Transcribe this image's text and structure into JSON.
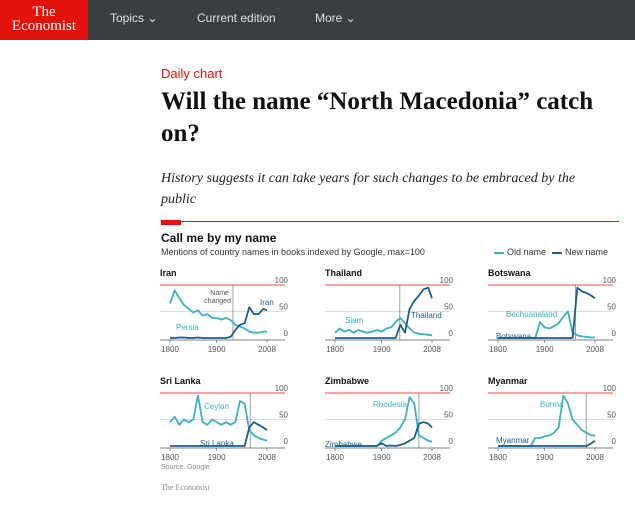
{
  "nav": {
    "logo_line1": "The",
    "logo_line2": "Economist",
    "topics": "Topics ⌄",
    "current": "Current edition",
    "more": "More ⌄"
  },
  "article": {
    "kicker": "Daily chart",
    "title": "Will the name “North Macedonia” catch on?",
    "subtitle": "History suggests it can take years for such changes to be embraced by the public"
  },
  "colors": {
    "old": "#38b2c4",
    "new": "#1b5d8c",
    "accent": "#e3120b"
  },
  "chart_data": {
    "type": "line",
    "title": "Call me by my name",
    "subtitle": "Mentions of country names in books indexed by Google, max=100",
    "legend": [
      "Old name",
      "New name"
    ],
    "legend_placement": "top-right",
    "ylim": [
      0,
      100
    ],
    "yticks": [
      "100",
      "50",
      "0"
    ],
    "xticks": [
      "1800",
      "1900",
      "2008"
    ],
    "x": [
      1800,
      1810,
      1820,
      1830,
      1840,
      1850,
      1860,
      1870,
      1880,
      1890,
      1900,
      1910,
      1920,
      1930,
      1940,
      1950,
      1960,
      1970,
      1980,
      1990,
      2000,
      2008
    ],
    "panels": [
      {
        "country": "Iran",
        "old_label": "Persia",
        "new_label": "Iran",
        "change_year": 1935,
        "annotation": "Name changed",
        "old": [
          65,
          90,
          75,
          62,
          55,
          48,
          52,
          42,
          45,
          38,
          38,
          35,
          38,
          34,
          25,
          22,
          18,
          12,
          10,
          10,
          12,
          12
        ],
        "new": [
          0,
          0,
          1,
          1,
          0,
          0,
          1,
          0,
          0,
          0,
          0,
          0,
          0,
          2,
          15,
          25,
          28,
          58,
          45,
          45,
          55,
          52
        ]
      },
      {
        "country": "Thailand",
        "old_label": "Siam",
        "new_label": "Thailand",
        "change_year": 1939,
        "old": [
          10,
          18,
          12,
          15,
          10,
          15,
          12,
          10,
          12,
          15,
          12,
          18,
          20,
          30,
          38,
          28,
          18,
          10,
          8,
          7,
          6,
          5
        ],
        "new": [
          0,
          0,
          0,
          0,
          0,
          0,
          0,
          0,
          0,
          0,
          0,
          0,
          0,
          0,
          25,
          10,
          55,
          70,
          80,
          92,
          95,
          75
        ]
      },
      {
        "country": "Botswana",
        "old_label": "Bechuanaland",
        "new_label": "Botswana",
        "change_year": 1966,
        "old": [
          0,
          0,
          0,
          0,
          0,
          0,
          0,
          0,
          0,
          30,
          20,
          18,
          22,
          28,
          40,
          50,
          10,
          5,
          3,
          2,
          1,
          1
        ],
        "new": [
          0,
          0,
          0,
          0,
          0,
          0,
          0,
          0,
          0,
          0,
          0,
          0,
          0,
          0,
          0,
          0,
          0,
          95,
          88,
          85,
          80,
          75
        ]
      },
      {
        "country": "Sri Lanka",
        "old_label": "Ceylon",
        "new_label": "Sri Lanka",
        "change_year": 1972,
        "old": [
          45,
          55,
          40,
          50,
          45,
          50,
          95,
          45,
          40,
          50,
          45,
          40,
          45,
          40,
          45,
          85,
          80,
          30,
          20,
          15,
          12,
          10
        ],
        "new": [
          0,
          0,
          0,
          0,
          0,
          0,
          0,
          0,
          0,
          0,
          0,
          0,
          0,
          0,
          0,
          0,
          0,
          35,
          45,
          40,
          35,
          30
        ]
      },
      {
        "country": "Zimbabwe",
        "old_label": "Rhodesia",
        "new_label": "Zimbabwe",
        "change_year": 1980,
        "old": [
          0,
          0,
          0,
          0,
          0,
          0,
          0,
          0,
          0,
          0,
          10,
          15,
          20,
          25,
          35,
          50,
          92,
          80,
          20,
          15,
          10,
          8
        ],
        "new": [
          0,
          0,
          0,
          0,
          0,
          0,
          0,
          0,
          0,
          0,
          5,
          0,
          1,
          0,
          2,
          5,
          10,
          15,
          42,
          45,
          42,
          35
        ]
      },
      {
        "country": "Myanmar",
        "old_label": "Burma",
        "new_label": "Myanmar",
        "change_year": 1989,
        "old": [
          0,
          0,
          0,
          0,
          0,
          0,
          0,
          0,
          15,
          15,
          18,
          20,
          25,
          35,
          95,
          80,
          50,
          40,
          30,
          25,
          20,
          20
        ],
        "new": [
          0,
          0,
          0,
          0,
          0,
          0,
          0,
          0,
          0,
          0,
          0,
          0,
          0,
          0,
          0,
          0,
          0,
          0,
          0,
          0,
          5,
          10
        ]
      }
    ],
    "source": "Source: Google",
    "credit": "The Economist"
  }
}
